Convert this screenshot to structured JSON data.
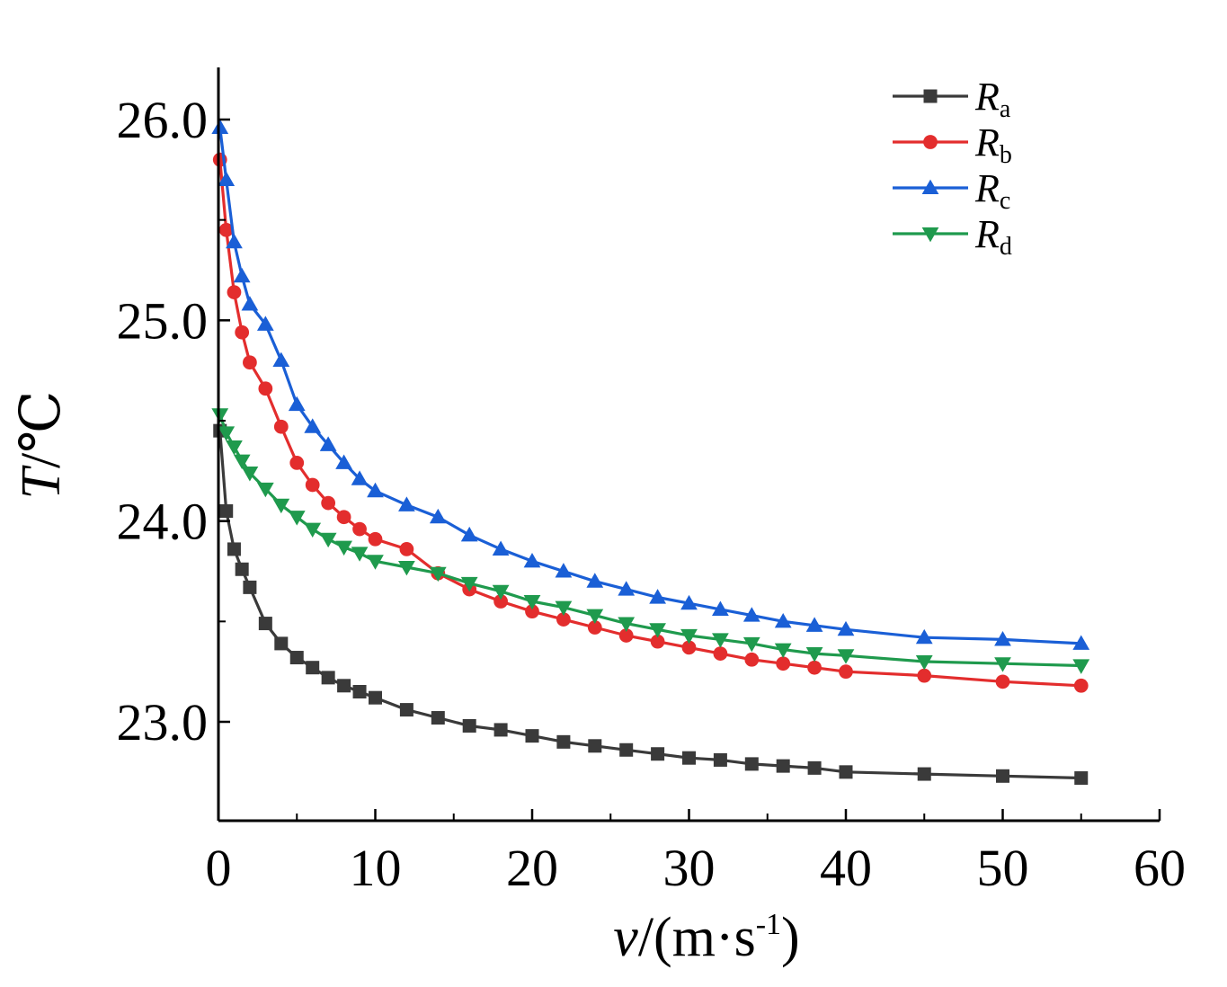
{
  "chart_data": {
    "type": "line",
    "title": "",
    "xlabel_var": "v",
    "xlabel_unit": "/(m·s",
    "xlabel_exp": "-1",
    "xlabel_close": ")",
    "ylabel_var": "T",
    "ylabel_unit": "/℃",
    "xlim": [
      0,
      60
    ],
    "ylim": [
      22.5,
      26.3
    ],
    "xticks": [
      0,
      10,
      20,
      30,
      40,
      50,
      60
    ],
    "xtick_labels": [
      "0",
      "10",
      "20",
      "30",
      "40",
      "50",
      "60"
    ],
    "yticks": [
      23.0,
      24.0,
      25.0,
      26.0
    ],
    "ytick_labels": [
      "23.0",
      "24.0",
      "25.0",
      "26.0"
    ],
    "legend_position": "top-right",
    "x": [
      0.1,
      0.5,
      1,
      1.5,
      2,
      3,
      4,
      5,
      6,
      7,
      8,
      9,
      10,
      12,
      14,
      16,
      18,
      20,
      22,
      24,
      26,
      28,
      30,
      32,
      34,
      36,
      38,
      40,
      45,
      50,
      55
    ],
    "series": [
      {
        "name": "R",
        "sub": "a",
        "color": "#3a3a3a",
        "marker": "square",
        "values": [
          24.45,
          24.05,
          23.86,
          23.76,
          23.67,
          23.49,
          23.39,
          23.32,
          23.27,
          23.22,
          23.18,
          23.15,
          23.12,
          23.06,
          23.02,
          22.98,
          22.96,
          22.93,
          22.9,
          22.88,
          22.86,
          22.84,
          22.82,
          22.81,
          22.79,
          22.78,
          22.77,
          22.75,
          22.74,
          22.73,
          22.72
        ]
      },
      {
        "name": "R",
        "sub": "b",
        "color": "#e32d2d",
        "marker": "circle",
        "values": [
          25.8,
          25.45,
          25.14,
          24.94,
          24.79,
          24.66,
          24.47,
          24.29,
          24.18,
          24.09,
          24.02,
          23.96,
          23.91,
          23.86,
          23.74,
          23.66,
          23.6,
          23.55,
          23.51,
          23.47,
          23.43,
          23.4,
          23.37,
          23.34,
          23.31,
          23.29,
          23.27,
          23.25,
          23.23,
          23.2,
          23.18
        ]
      },
      {
        "name": "R",
        "sub": "c",
        "color": "#1a5fd6",
        "marker": "triangle-up",
        "values": [
          25.96,
          25.7,
          25.39,
          25.22,
          25.08,
          24.98,
          24.8,
          24.58,
          24.47,
          24.38,
          24.29,
          24.21,
          24.15,
          24.08,
          24.02,
          23.93,
          23.86,
          23.8,
          23.75,
          23.7,
          23.66,
          23.62,
          23.59,
          23.56,
          23.53,
          23.5,
          23.48,
          23.46,
          23.42,
          23.41,
          23.39
        ]
      },
      {
        "name": "R",
        "sub": "d",
        "color": "#1f9a4d",
        "marker": "triangle-down",
        "values": [
          24.53,
          24.44,
          24.37,
          24.3,
          24.24,
          24.16,
          24.08,
          24.02,
          23.96,
          23.91,
          23.87,
          23.84,
          23.8,
          23.77,
          23.74,
          23.69,
          23.65,
          23.6,
          23.57,
          23.53,
          23.49,
          23.46,
          23.43,
          23.41,
          23.39,
          23.36,
          23.34,
          23.33,
          23.3,
          23.29,
          23.28
        ]
      }
    ]
  }
}
